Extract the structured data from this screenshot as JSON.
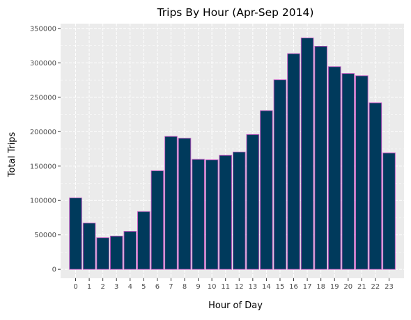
{
  "chart_data": {
    "type": "bar",
    "title": "Trips By Hour (Apr-Sep 2014)",
    "xlabel": "Hour of Day",
    "ylabel": "Total Trips",
    "categories": [
      "0",
      "1",
      "2",
      "3",
      "4",
      "5",
      "6",
      "7",
      "8",
      "9",
      "10",
      "11",
      "12",
      "13",
      "14",
      "15",
      "16",
      "17",
      "18",
      "19",
      "20",
      "21",
      "22",
      "23"
    ],
    "values": [
      103800,
      67200,
      45900,
      48300,
      55200,
      83900,
      143200,
      193100,
      190500,
      159800,
      159100,
      165700,
      170400,
      195900,
      230600,
      275400,
      313400,
      336200,
      324200,
      294500,
      284600,
      281300,
      241900,
      169100
    ],
    "y_ticks": [
      "0",
      "50000",
      "100000",
      "150000",
      "200000",
      "250000",
      "300000",
      "350000"
    ],
    "ylim": [
      -13000,
      357000
    ],
    "grid": true,
    "colors": {
      "bar_fill": "#003a5c",
      "bar_outline": "#c154c1",
      "panel_background": "#ebebeb",
      "grid": "#ffffff"
    }
  }
}
